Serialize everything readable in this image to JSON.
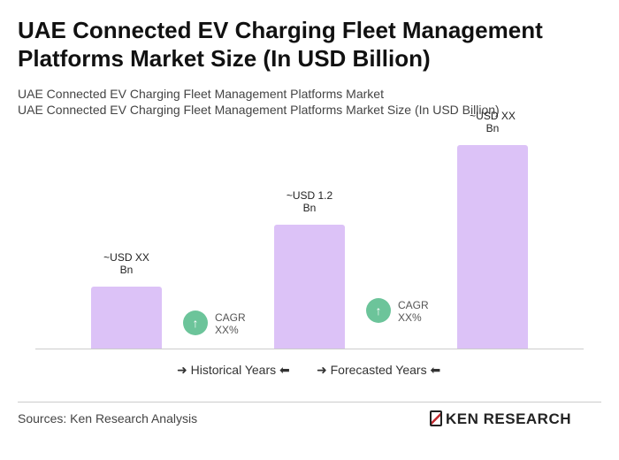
{
  "chart_data": {
    "type": "bar",
    "title": "UAE Connected EV Charging Fleet Management Platforms Market Size (In USD Billion)",
    "subtitle": [
      "UAE Connected EV Charging Fleet Management Platforms Market",
      "UAE Connected EV Charging Fleet Management Platforms Market Size (In USD Billion)"
    ],
    "categories": [
      null,
      null,
      null
    ],
    "values": [
      0.6,
      1.2,
      1.97
    ],
    "value_labels": [
      "~USD XX Bn",
      "~USD 1.2 Bn",
      "~USD XX Bn"
    ],
    "color": "#dcc2f7",
    "ylim": [
      0,
      2.0
    ],
    "annotations": [
      "CAGR XX%",
      "CAGR XX%"
    ],
    "legend": [
      "Historical Years",
      "Forecasted Years"
    ],
    "source": "Sources: Ken Research Analysis",
    "logo": "KEN RESEARCH"
  }
}
